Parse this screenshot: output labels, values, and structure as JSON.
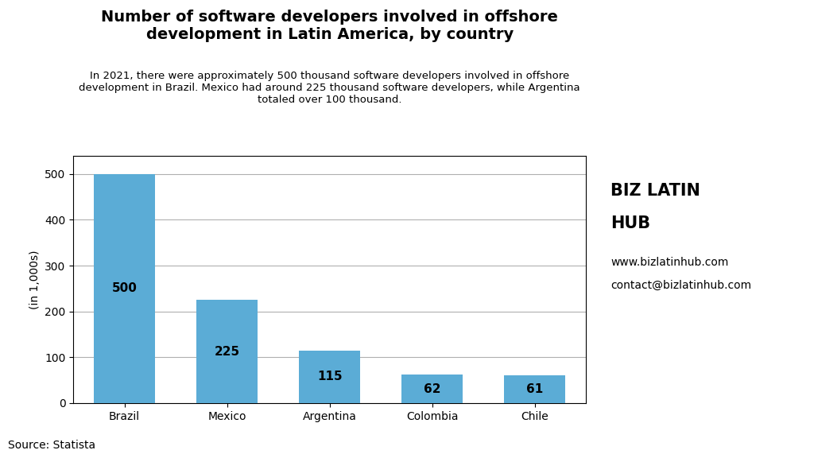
{
  "chart_data": {
    "type": "bar",
    "title": "Number of software developers involved in offshore\ndevelopment in Latin America, by country",
    "subtitle": "In 2021, there were approximately 500 thousand software developers involved in offshore\ndevelopment in Brazil. Mexico had around 225 thousand software developers, while Argentina\ntotaled over 100 thousand.",
    "categories": [
      "Brazil",
      "Mexico",
      "Argentina",
      "Colombia",
      "Chile"
    ],
    "values": [
      500,
      225,
      115,
      62,
      61
    ],
    "color": "#5BACD6",
    "y_label": "(in 1,000s)",
    "ylim": [
      0,
      540
    ],
    "yticks": [
      0,
      100,
      200,
      300,
      400,
      500
    ],
    "grid": true,
    "data_labels": true,
    "annotations": [
      "Source: Statista",
      "BIZ LATIN",
      "HUB",
      "www.bizlatinhub.com",
      "contact@bizlatinhub.com"
    ]
  }
}
